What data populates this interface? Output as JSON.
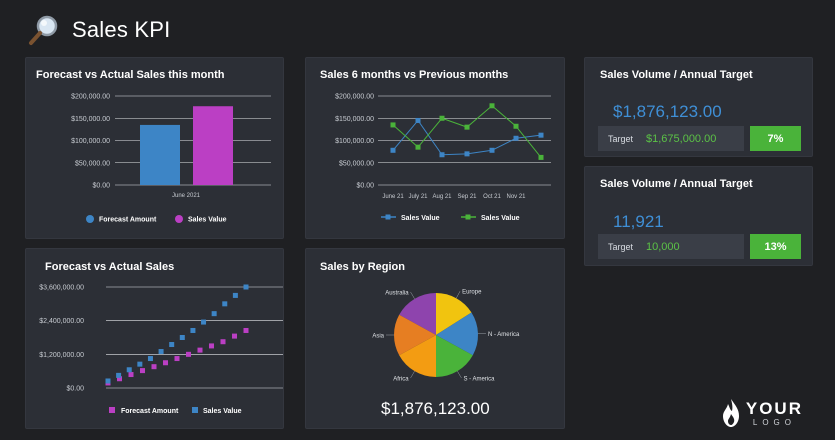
{
  "header": {
    "title": "Sales KPI",
    "icon": "magnifier-icon"
  },
  "panels": {
    "forecast_month": {
      "title": "Forecast vs Actual Sales this month",
      "legend": [
        "Forecast Amount",
        "Sales Value"
      ]
    },
    "six_months": {
      "title": "Sales 6 months vs Previous months",
      "legend": [
        "Sales Value",
        "Sales Value"
      ]
    },
    "forecast_actual": {
      "title": "Forecast vs Actual Sales",
      "legend": [
        "Forecast Amount",
        "Sales Value"
      ]
    },
    "region": {
      "title": "Sales by Region",
      "total": "$1,876,123.00"
    },
    "kpi1": {
      "title": "Sales Volume / Annual Target",
      "value": "$1,876,123.00",
      "target_label": "Target",
      "target_value": "$1,675,000.00",
      "percent": "7%"
    },
    "kpi2": {
      "title": "Sales Volume / Annual Target",
      "value": "11,921",
      "target_label": "Target",
      "target_value": "10,000",
      "percent": "13%"
    }
  },
  "brand": {
    "top": "YOUR",
    "bottom": "LOGO"
  },
  "colors": {
    "blue": "#3d85c6",
    "magenta": "#bb3fc4",
    "green": "#4ab33a",
    "background": "#1f2023",
    "panel": "#2c2f36"
  },
  "chart_data": [
    {
      "id": "forecast_month",
      "type": "bar",
      "title": "Forecast vs Actual Sales this month",
      "categories": [
        "June 2021"
      ],
      "series": [
        {
          "name": "Forecast Amount",
          "values": [
            135000
          ],
          "color": "#3d85c6"
        },
        {
          "name": "Sales Value",
          "values": [
            177000
          ],
          "color": "#bb3fc4"
        }
      ],
      "yticks": [
        "$0.00",
        "$50,000.00",
        "$100,000.00",
        "$150,000.00",
        "$200,000.00"
      ],
      "ylim": [
        0,
        200000
      ],
      "legend": "bottom",
      "grid": true
    },
    {
      "id": "six_months",
      "type": "line",
      "title": "Sales 6 months vs Previous months",
      "categories": [
        "June 21",
        "July 21",
        "Aug 21",
        "Sep 21",
        "Oct 21",
        "Nov 21",
        ""
      ],
      "series": [
        {
          "name": "Sales Value",
          "values": [
            78000,
            145000,
            68000,
            70000,
            78000,
            105000,
            112000
          ],
          "color": "#3d85c6"
        },
        {
          "name": "Sales Value",
          "values": [
            135000,
            85000,
            150000,
            130000,
            178000,
            132000,
            62000
          ],
          "color": "#4ab33a"
        }
      ],
      "yticks": [
        "$0.00",
        "$50,000.00",
        "$100,000.00",
        "$150,000.00",
        "$200,000.00"
      ],
      "ylim": [
        0,
        200000
      ],
      "legend": "bottom",
      "grid": true
    },
    {
      "id": "forecast_actual",
      "type": "scatter",
      "title": "Forecast vs Actual Sales",
      "series": [
        {
          "name": "Forecast Amount",
          "color": "#bb3fc4",
          "values": [
            180000,
            330000,
            480000,
            620000,
            760000,
            900000,
            1050000,
            1200000,
            1350000,
            1500000,
            1650000,
            1850000,
            2050000
          ]
        },
        {
          "name": "Sales Value",
          "color": "#3d85c6",
          "values": [
            250000,
            450000,
            650000,
            850000,
            1050000,
            1300000,
            1550000,
            1800000,
            2050000,
            2350000,
            2650000,
            3000000,
            3300000,
            3600000
          ]
        }
      ],
      "yticks": [
        "$0.00",
        "$1,200,000.00",
        "$2,400,000.00",
        "$3,600,000.00"
      ],
      "ylim": [
        0,
        3600000
      ],
      "legend": "bottom",
      "grid": true
    },
    {
      "id": "region",
      "type": "pie",
      "title": "Sales by Region",
      "labels": [
        "Australia",
        "Europe",
        "N - America",
        "S - America",
        "Africa",
        "Asia"
      ],
      "values": [
        17,
        16,
        17,
        17,
        17,
        16
      ],
      "colors": [
        "#8e44ad",
        "#f1c40f",
        "#3d85c6",
        "#4ab33a",
        "#f39c12",
        "#e67e22"
      ],
      "legend": "none"
    }
  ]
}
